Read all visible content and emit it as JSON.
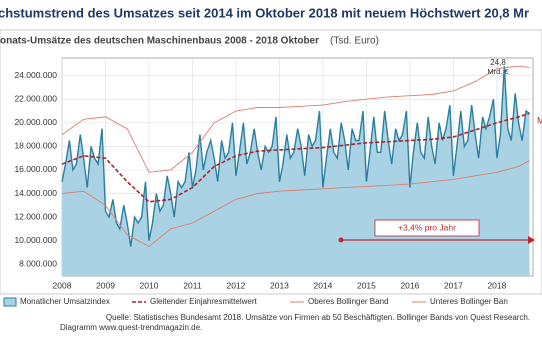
{
  "chart_data": {
    "type": "line",
    "title": "chstumstrend des Umsatzes seit 2014 im Oktober 2018 mit neuem Höchstwert 20,8 Mr",
    "subtitle": "onats-Umsätze des deutschen Maschinenbaus 2008 - 2018 Oktober",
    "unit": "(Tsd. Euro)",
    "xlim": [
      2008,
      2018.83
    ],
    "xticks": [
      2008,
      2009,
      2010,
      2011,
      2012,
      2013,
      2014,
      2015,
      2016,
      2017,
      2018
    ],
    "ylim": [
      7000000,
      25500000
    ],
    "yticks": [
      {
        "value": 8000000,
        "label": "8.000.000"
      },
      {
        "value": 10000000,
        "label": "10.000.000"
      },
      {
        "value": 12000000,
        "label": "12.000.000"
      },
      {
        "value": 14000000,
        "label": "14.000.000"
      },
      {
        "value": 16000000,
        "label": "16.000.000"
      },
      {
        "value": 18000000,
        "label": "18.000.000"
      },
      {
        "value": 20000000,
        "label": "20.000.000"
      },
      {
        "value": 22000000,
        "label": "22.000.000"
      },
      {
        "value": 24000000,
        "label": "24.000.000"
      }
    ],
    "grid": true,
    "series": [
      {
        "name": "Monatlicher Umsatzindex",
        "color": "#2b7f9e",
        "fill": "#a9d3e4",
        "area": true,
        "x": [
          2008,
          2008.08,
          2008.17,
          2008.25,
          2008.33,
          2008.42,
          2008.5,
          2008.58,
          2008.67,
          2008.75,
          2008.83,
          2008.92,
          2009,
          2009.08,
          2009.17,
          2009.25,
          2009.33,
          2009.42,
          2009.5,
          2009.58,
          2009.67,
          2009.75,
          2009.83,
          2009.92,
          2010,
          2010.08,
          2010.17,
          2010.25,
          2010.33,
          2010.42,
          2010.5,
          2010.58,
          2010.67,
          2010.75,
          2010.83,
          2010.92,
          2011,
          2011.08,
          2011.17,
          2011.25,
          2011.33,
          2011.42,
          2011.5,
          2011.58,
          2011.67,
          2011.75,
          2011.83,
          2011.92,
          2012,
          2012.08,
          2012.17,
          2012.25,
          2012.33,
          2012.42,
          2012.5,
          2012.58,
          2012.67,
          2012.75,
          2012.83,
          2012.92,
          2013,
          2013.08,
          2013.17,
          2013.25,
          2013.33,
          2013.42,
          2013.5,
          2013.58,
          2013.67,
          2013.75,
          2013.83,
          2013.92,
          2014,
          2014.08,
          2014.17,
          2014.25,
          2014.33,
          2014.42,
          2014.5,
          2014.58,
          2014.67,
          2014.75,
          2014.83,
          2014.92,
          2015,
          2015.08,
          2015.17,
          2015.25,
          2015.33,
          2015.42,
          2015.5,
          2015.58,
          2015.67,
          2015.75,
          2015.83,
          2015.92,
          2016,
          2016.08,
          2016.17,
          2016.25,
          2016.33,
          2016.42,
          2016.5,
          2016.58,
          2016.67,
          2016.75,
          2016.83,
          2016.92,
          2017,
          2017.08,
          2017.17,
          2017.25,
          2017.33,
          2017.42,
          2017.5,
          2017.58,
          2017.67,
          2017.75,
          2017.83,
          2017.92,
          2018,
          2018.08,
          2018.17,
          2018.25,
          2018.33,
          2018.42,
          2018.5,
          2018.58,
          2018.67,
          2018.75
        ],
        "values": [
          15000000,
          16500000,
          18500000,
          16000000,
          16500000,
          19000000,
          17000000,
          14500000,
          18000000,
          17000000,
          16500000,
          19500000,
          12500000,
          12000000,
          13500000,
          11500000,
          11000000,
          13000000,
          11500000,
          9500000,
          12000000,
          11500000,
          12000000,
          15000000,
          10000000,
          11500000,
          14000000,
          12500000,
          13000000,
          15500000,
          14000000,
          12000000,
          15000000,
          14500000,
          15000000,
          17500000,
          14500000,
          16000000,
          19000000,
          16000000,
          17500000,
          18500000,
          17000000,
          15000000,
          18500000,
          17000000,
          17500000,
          20000000,
          15500000,
          17500000,
          20000000,
          16500000,
          17500000,
          19500000,
          17500000,
          16000000,
          18000000,
          17500000,
          18000000,
          20500000,
          15000000,
          16500000,
          19000000,
          17000000,
          17500000,
          19500000,
          18000000,
          15500000,
          19000000,
          18000000,
          18500000,
          21000000,
          14500000,
          17000000,
          19500000,
          17500000,
          17000000,
          20000000,
          18500000,
          16000000,
          19500000,
          18500000,
          18500000,
          21000000,
          15000000,
          17500000,
          20500000,
          17500000,
          17500000,
          21000000,
          18500000,
          16500000,
          19500000,
          18500000,
          19000000,
          21000000,
          14500000,
          17500000,
          20000000,
          17500000,
          17000000,
          20500000,
          18000000,
          16500000,
          20000000,
          18500000,
          19500000,
          21500000,
          15500000,
          18000000,
          21000000,
          18000000,
          18500000,
          21500000,
          19000000,
          17000000,
          20500000,
          19500000,
          20500000,
          22000000,
          17000000,
          19000000,
          24800000,
          19500000,
          18500000,
          22500000,
          20000000,
          18500000,
          21000000,
          20800000
        ]
      },
      {
        "name": "Gleitender Einjahresmittelwert",
        "color": "#a3282b",
        "dash": true,
        "x": [
          2008,
          2008.5,
          2009,
          2009.5,
          2010,
          2010.5,
          2011,
          2011.5,
          2012,
          2012.5,
          2013,
          2013.5,
          2014,
          2014.5,
          2015,
          2015.5,
          2016,
          2016.5,
          2017,
          2017.5,
          2018,
          2018.5,
          2018.75
        ],
        "values": [
          16500000,
          17200000,
          17000000,
          15000000,
          13300000,
          13500000,
          14500000,
          16300000,
          17200000,
          17600000,
          17700000,
          17800000,
          17900000,
          18100000,
          18300000,
          18400000,
          18500000,
          18600000,
          18800000,
          19400000,
          20000000,
          20500000,
          20800000
        ]
      },
      {
        "name": "Oberes Bollinger Band",
        "color": "#df7d6c",
        "x": [
          2008,
          2008.5,
          2009,
          2009.5,
          2010,
          2010.5,
          2011,
          2011.5,
          2012,
          2012.5,
          2013,
          2013.5,
          2014,
          2014.5,
          2015,
          2015.5,
          2016,
          2016.5,
          2017,
          2017.5,
          2018,
          2018.5,
          2018.75
        ],
        "values": [
          19000000,
          20300000,
          20500000,
          19500000,
          15800000,
          16000000,
          17500000,
          20000000,
          21000000,
          21300000,
          21300000,
          21400000,
          21500000,
          21800000,
          22000000,
          22200000,
          22300000,
          22400000,
          22700000,
          23500000,
          24600000,
          24800000,
          24700000
        ]
      },
      {
        "name": "Unteres Bollinger Ban",
        "color": "#df7d6c",
        "x": [
          2008,
          2008.5,
          2009,
          2009.5,
          2010,
          2010.5,
          2011,
          2011.5,
          2012,
          2012.5,
          2013,
          2013.5,
          2014,
          2014.5,
          2015,
          2015.5,
          2016,
          2016.5,
          2017,
          2017.5,
          2018,
          2018.5,
          2018.75
        ],
        "values": [
          14000000,
          14200000,
          13000000,
          10500000,
          9500000,
          11000000,
          11500000,
          12500000,
          13500000,
          14000000,
          14200000,
          14300000,
          14400000,
          14500000,
          14600000,
          14700000,
          14800000,
          15000000,
          15200000,
          15500000,
          15800000,
          16300000,
          16800000
        ]
      }
    ],
    "annotations": [
      "24,8",
      "Mrd. €",
      "+3,4% pro Jahr",
      "M"
    ],
    "source": "Quelle: Statistisches Bundesamt 2018. Umsätze von Firmen ab 50 Beschäftigten. Bollinger Bands von Quest Research.",
    "credit": "Diagramm   www.quest-trendmagazin.de."
  }
}
